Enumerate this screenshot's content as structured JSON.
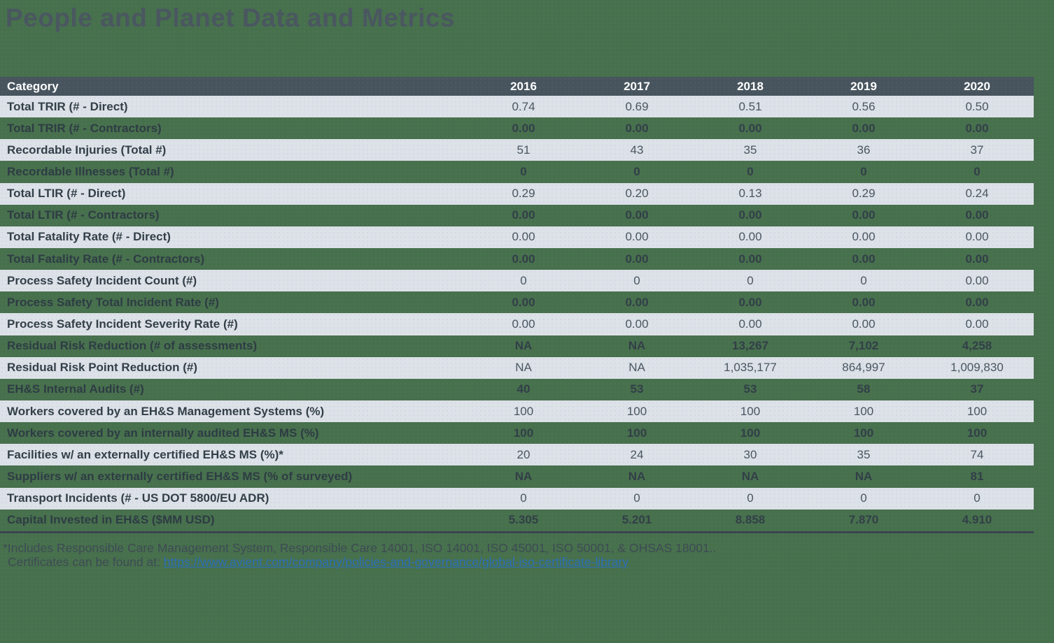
{
  "page": {
    "title": "People and Planet Data and Metrics"
  },
  "table": {
    "columns": [
      "Category",
      "2016",
      "2017",
      "2018",
      "2019",
      "2020"
    ],
    "rows": [
      {
        "label": "Total TRIR (# - Direct)",
        "values": [
          "0.74",
          "0.69",
          "0.51",
          "0.56",
          "0.50"
        ]
      },
      {
        "label": "Total TRIR (# - Contractors)",
        "values": [
          "0.00",
          "0.00",
          "0.00",
          "0.00",
          "0.00"
        ]
      },
      {
        "label": "Recordable Injuries (Total #)",
        "values": [
          "51",
          "43",
          "35",
          "36",
          "37"
        ]
      },
      {
        "label": "Recordable Illnesses (Total #)",
        "values": [
          "0",
          "0",
          "0",
          "0",
          "0"
        ]
      },
      {
        "label": "Total LTIR (# - Direct)",
        "values": [
          "0.29",
          "0.20",
          "0.13",
          "0.29",
          "0.24"
        ]
      },
      {
        "label": "Total LTIR (# - Contractors)",
        "values": [
          "0.00",
          "0.00",
          "0.00",
          "0.00",
          "0.00"
        ]
      },
      {
        "label": "Total Fatality Rate (# - Direct)",
        "values": [
          "0.00",
          "0.00",
          "0.00",
          "0.00",
          "0.00"
        ]
      },
      {
        "label": "Total Fatality Rate (# - Contractors)",
        "values": [
          "0.00",
          "0.00",
          "0.00",
          "0.00",
          "0.00"
        ]
      },
      {
        "label": "Process Safety Incident Count (#)",
        "values": [
          "0",
          "0",
          "0",
          "0",
          "0.00"
        ]
      },
      {
        "label": "Process Safety Total Incident Rate (#)",
        "values": [
          "0.00",
          "0.00",
          "0.00",
          "0.00",
          "0.00"
        ]
      },
      {
        "label": "Process Safety Incident Severity Rate (#)",
        "values": [
          "0.00",
          "0.00",
          "0.00",
          "0.00",
          "0.00"
        ]
      },
      {
        "label": "Residual Risk Reduction (# of assessments)",
        "values": [
          "NA",
          "NA",
          "13,267",
          "7,102",
          "4,258"
        ]
      },
      {
        "label": "Residual Risk Point Reduction (#)",
        "values": [
          "NA",
          "NA",
          "1,035,177",
          "864,997",
          "1,009,830"
        ]
      },
      {
        "label": "EH&S Internal Audits (#)",
        "values": [
          "40",
          "53",
          "53",
          "58",
          "37"
        ]
      },
      {
        "label": "Workers covered by an EH&S Management Systems (%)",
        "values": [
          "100",
          "100",
          "100",
          "100",
          "100"
        ]
      },
      {
        "label": "Workers covered by an internally audited EH&S MS (%)",
        "values": [
          "100",
          "100",
          "100",
          "100",
          "100"
        ]
      },
      {
        "label": "Facilities w/ an externally certified EH&S MS (%)*",
        "values": [
          "20",
          "24",
          "30",
          "35",
          "74"
        ]
      },
      {
        "label": "Suppliers w/ an externally certified EH&S MS (% of surveyed)",
        "values": [
          "NA",
          "NA",
          "NA",
          "NA",
          "81"
        ]
      },
      {
        "label": "Transport Incidents (# - US DOT 5800/EU ADR)",
        "values": [
          "0",
          "0",
          "0",
          "0",
          "0"
        ]
      },
      {
        "label": "Capital Invested in EH&S ($MM USD)",
        "values": [
          "5.305",
          "5.201",
          "8.858",
          "7.870",
          "4.910"
        ]
      }
    ]
  },
  "footnote": {
    "line1": "*Includes Responsible Care Management System, Responsible Care 14001, ISO 14001, ISO 45001, ISO 50001, & OHSAS 18001..",
    "line2_prefix": "Certificates can be found at: ",
    "link_text": "https://www.avient.com/company/policies-and-governance/global-iso-certificate-library"
  },
  "colors": {
    "page_background": "#47704d",
    "header_background": "#47545e",
    "alt_row_background": "#dde1e8",
    "header_text": "#ffffff",
    "body_text": "#333f48",
    "title_text": "#4a5760",
    "link": "#2b6fb7",
    "table_bottom_border": "#39464e"
  }
}
